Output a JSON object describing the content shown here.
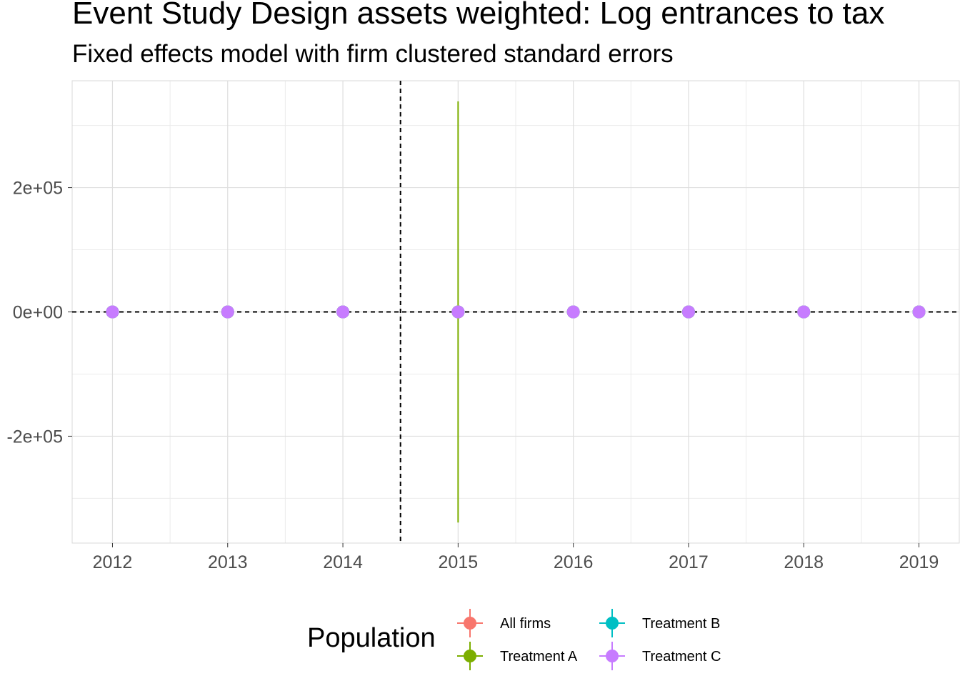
{
  "title": "Event Study Design assets weighted: Log entrances to tax",
  "subtitle": "Fixed effects model with firm clustered standard errors",
  "chart_data": {
    "type": "scatter",
    "x": [
      2012,
      2013,
      2014,
      2015,
      2016,
      2017,
      2018,
      2019
    ],
    "xticks": [
      "2012",
      "2013",
      "2014",
      "2015",
      "2016",
      "2017",
      "2018",
      "2019"
    ],
    "yticks": [
      {
        "value": 200000,
        "label": "2e+05"
      },
      {
        "value": 0,
        "label": "0e+00"
      },
      {
        "value": -200000,
        "label": "-2e+05"
      }
    ],
    "ylim": [
      -372000,
      372000
    ],
    "xlim": [
      2011.65,
      2019.35
    ],
    "grid": true,
    "reference_lines": {
      "vertical_x": 2014.5,
      "horizontal_y": 0,
      "style": "dashed"
    },
    "legend": {
      "title": "Population",
      "placement": "bottom"
    },
    "series": [
      {
        "name": "All firms",
        "color": "#F8766D",
        "values": [
          0,
          0,
          0,
          0,
          0,
          0,
          0,
          0
        ],
        "ci_low": [
          0,
          0,
          0,
          0,
          0,
          0,
          0,
          0
        ],
        "ci_high": [
          0,
          0,
          0,
          0,
          0,
          0,
          0,
          0
        ]
      },
      {
        "name": "Treatment A",
        "color": "#7CAE00",
        "values": [
          0,
          0,
          0,
          0,
          0,
          0,
          0,
          0
        ],
        "ci_low": [
          0,
          0,
          0,
          -339000,
          0,
          0,
          0,
          0
        ],
        "ci_high": [
          0,
          0,
          0,
          339000,
          0,
          0,
          0,
          0
        ]
      },
      {
        "name": "Treatment B",
        "color": "#00BFC4",
        "values": [
          0,
          0,
          0,
          0,
          0,
          0,
          0,
          0
        ],
        "ci_low": [
          0,
          0,
          0,
          0,
          0,
          0,
          0,
          0
        ],
        "ci_high": [
          0,
          0,
          0,
          0,
          0,
          0,
          0,
          0
        ]
      },
      {
        "name": "Treatment C",
        "color": "#C77CFF",
        "values": [
          0,
          0,
          0,
          0,
          0,
          0,
          0,
          0
        ],
        "ci_low": [
          0,
          0,
          0,
          0,
          0,
          0,
          0,
          0
        ],
        "ci_high": [
          0,
          0,
          0,
          0,
          0,
          0,
          0,
          0
        ]
      }
    ]
  }
}
